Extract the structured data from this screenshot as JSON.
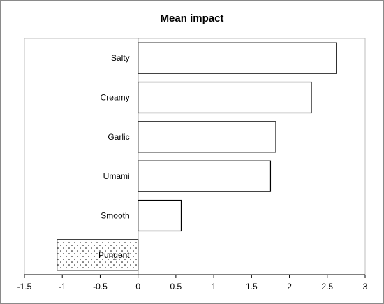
{
  "chart_data": {
    "type": "bar",
    "orientation": "horizontal",
    "title": "Mean impact",
    "xlabel": "",
    "ylabel": "",
    "xlim": [
      -1.5,
      3
    ],
    "x_ticks": [
      "-1.5",
      "-1",
      "-0.5",
      "0",
      "0.5",
      "1",
      "1.5",
      "2",
      "2.5",
      "3"
    ],
    "categories": [
      "Salty",
      "Creamy",
      "Garlic",
      "Umami",
      "Smooth",
      "Pungent"
    ],
    "values": [
      2.62,
      2.29,
      1.82,
      1.75,
      0.57,
      -1.07
    ],
    "bar_fill_positive": "#ffffff",
    "bar_fill_negative": "dotted",
    "bar_stroke": "#000000",
    "grid": false,
    "legend": "none"
  }
}
